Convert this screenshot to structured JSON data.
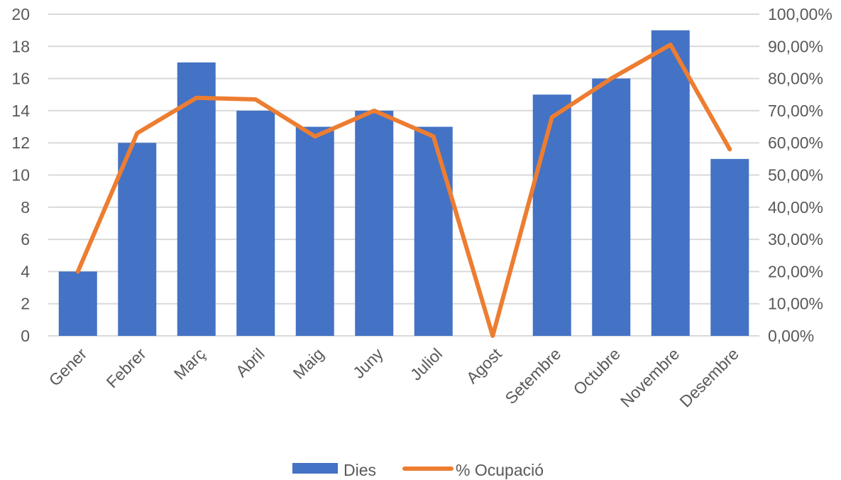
{
  "chart_data": {
    "type": "bar",
    "categories": [
      "Gener",
      "Febrer",
      "Març",
      "Abril",
      "Maig",
      "Juny",
      "Juliol",
      "Agost",
      "Setembre",
      "Octubre",
      "Novembre",
      "Desembre"
    ],
    "series": [
      {
        "name": "Dies",
        "type": "bar",
        "axis": "left",
        "color": "#4472C4",
        "values": [
          4,
          12,
          17,
          14,
          13,
          14,
          13,
          0,
          15,
          16,
          19,
          11
        ]
      },
      {
        "name": "% Ocupació",
        "type": "line",
        "axis": "right",
        "color": "#ED7D31",
        "values": [
          0.2,
          0.63,
          0.74,
          0.735,
          0.62,
          0.7,
          0.62,
          0.0,
          0.68,
          0.8,
          0.905,
          0.58
        ]
      }
    ],
    "y_left": {
      "range": [
        0,
        20
      ],
      "ticks": [
        0,
        2,
        4,
        6,
        8,
        10,
        12,
        14,
        16,
        18,
        20
      ],
      "tick_labels": [
        "0",
        "2",
        "4",
        "6",
        "8",
        "10",
        "12",
        "14",
        "16",
        "18",
        "20"
      ]
    },
    "y_right": {
      "range": [
        0,
        1
      ],
      "ticks": [
        0,
        0.1,
        0.2,
        0.3,
        0.4,
        0.5,
        0.6,
        0.7,
        0.8,
        0.9,
        1.0
      ],
      "tick_labels": [
        "0,00%",
        "10,00%",
        "20,00%",
        "30,00%",
        "40,00%",
        "50,00%",
        "60,00%",
        "70,00%",
        "80,00%",
        "90,00%",
        "100,00%"
      ]
    },
    "grid": true,
    "grid_color": "#D9D9D9",
    "legend": {
      "position": "bottom",
      "entries": [
        "Dies",
        "% Ocupació"
      ]
    }
  }
}
